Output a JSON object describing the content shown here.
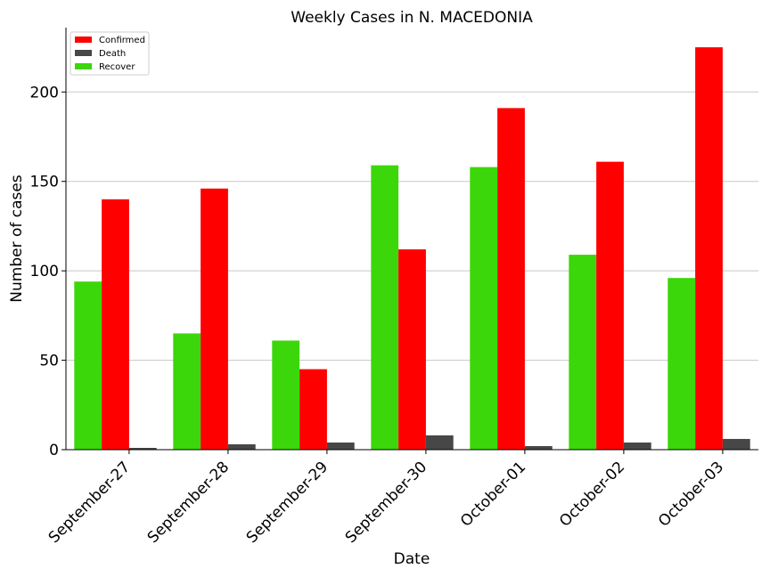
{
  "chart_data": {
    "type": "bar",
    "title": "Weekly Cases in N. MACEDONIA",
    "xlabel": "Date",
    "ylabel": "Number of cases",
    "categories": [
      "September-27",
      "September-28",
      "September-29",
      "September-30",
      "October-01",
      "October-02",
      "October-03"
    ],
    "series": [
      {
        "name": "Recover",
        "color": "#3cd70a",
        "values": [
          94,
          65,
          61,
          159,
          158,
          109,
          96
        ]
      },
      {
        "name": "Confirmed",
        "color": "#ff0000",
        "values": [
          140,
          146,
          45,
          112,
          191,
          161,
          225
        ]
      },
      {
        "name": "Death",
        "color": "#474747",
        "values": [
          1,
          3,
          4,
          8,
          2,
          4,
          6
        ]
      }
    ],
    "legend_order": [
      "Confirmed",
      "Death",
      "Recover"
    ],
    "legend_position": "top-left",
    "ylim": [
      0,
      236
    ],
    "yticks": [
      0,
      50,
      100,
      150,
      200
    ],
    "grid": "horizontal"
  }
}
